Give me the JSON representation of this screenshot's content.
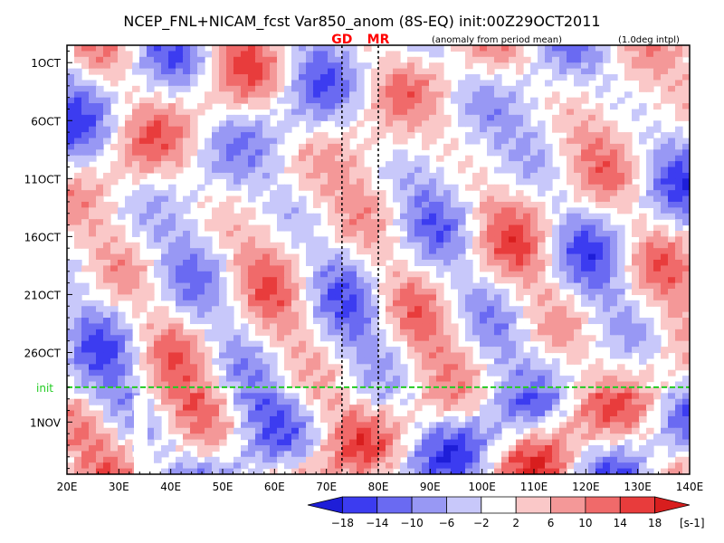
{
  "chart_data": {
    "type": "heatmap",
    "title": "NCEP_FNL+NICAM_fcst Var850_anom (8S-EQ) init:00Z29OCT2011",
    "subtitle_left": "(anomaly from period mean)",
    "subtitle_right": "(1.0deg intpl)",
    "x_ticks": [
      "20E",
      "30E",
      "40E",
      "50E",
      "60E",
      "70E",
      "80E",
      "90E",
      "100E",
      "110E",
      "120E",
      "130E",
      "140E"
    ],
    "x_range": [
      20,
      140
    ],
    "y_ticks": [
      "1OCT",
      "6OCT",
      "11OCT",
      "16OCT",
      "21OCT",
      "26OCT",
      "1NOV"
    ],
    "y_tick_days": [
      1,
      6,
      11,
      16,
      21,
      26,
      32
    ],
    "y_range_days": [
      -0.5,
      36.5
    ],
    "init_label": "init",
    "init_day": 29,
    "markers": [
      {
        "label": "GD",
        "lon": 73
      },
      {
        "label": "MR",
        "lon": 80
      }
    ],
    "colorbar": {
      "levels": [
        -18,
        -14,
        -10,
        -6,
        -2,
        2,
        6,
        10,
        14,
        18
      ],
      "tick_labels": [
        "-18",
        "-14",
        "-10",
        "-6",
        "-2",
        "2",
        "6",
        "10",
        "14",
        "18"
      ],
      "units": "[s-1]",
      "colors": [
        "#1e1ed8",
        "#3c3cf0",
        "#6a6af2",
        "#9898f4",
        "#c8c8fa",
        "#ffffff",
        "#fac8c8",
        "#f49898",
        "#f06a6a",
        "#e83c3c",
        "#d81e1e"
      ]
    },
    "colors": {
      "init_line": "#22cc22",
      "marker_text": "#ff0000",
      "frame": "#000000"
    }
  }
}
